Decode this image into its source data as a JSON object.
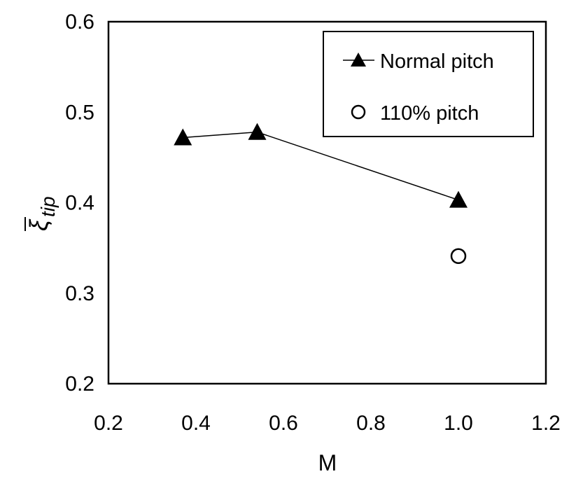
{
  "chart_data": {
    "type": "scatter",
    "xlabel": "M",
    "ylabel_main": "ξ",
    "ylabel_sub": "tip",
    "xlim": [
      0.2,
      1.2
    ],
    "ylim": [
      0.2,
      0.6
    ],
    "xticks": [
      "0.2",
      "0.4",
      "0.6",
      "0.8",
      "1.0",
      "1.2"
    ],
    "yticks": [
      "0.2",
      "0.3",
      "0.4",
      "0.5",
      "0.6"
    ],
    "grid": false,
    "legend_position": "top-right",
    "series": [
      {
        "name": "Normal pitch",
        "marker": "triangle",
        "line": true,
        "color": "#000000",
        "x": [
          0.37,
          0.54,
          1.0
        ],
        "y": [
          0.472,
          0.478,
          0.403
        ]
      },
      {
        "name": "110% pitch",
        "marker": "circle-open",
        "line": false,
        "color": "#000000",
        "x": [
          1.0
        ],
        "y": [
          0.341
        ]
      }
    ]
  }
}
